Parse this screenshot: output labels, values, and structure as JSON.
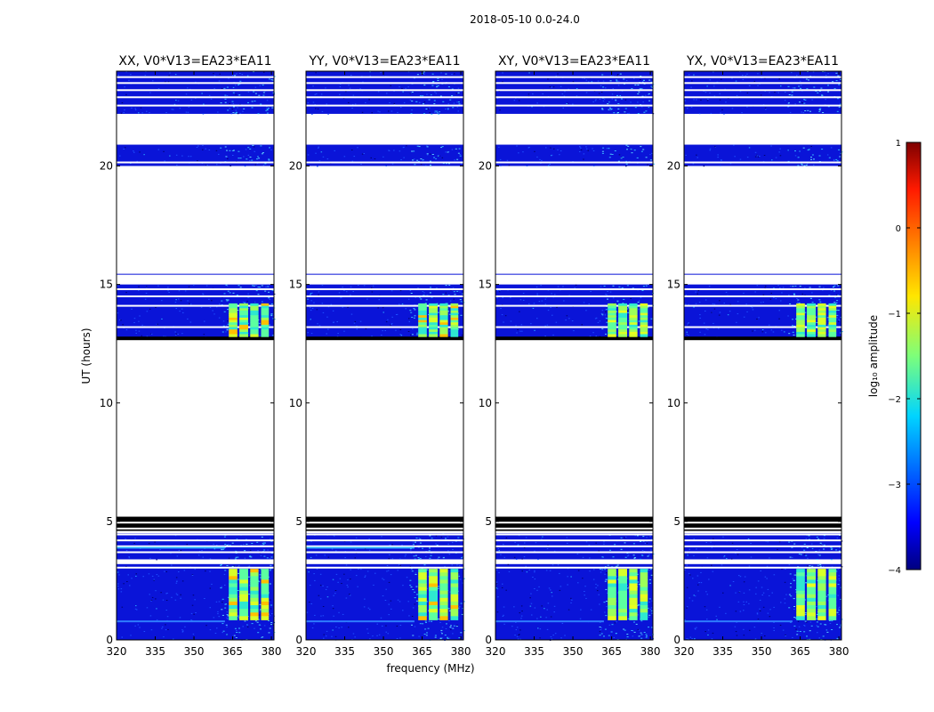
{
  "figure": {
    "suptitle": "2018-05-10 0.0-24.0",
    "xlabel": "frequency (MHz)",
    "ylabel": "UT (hours)"
  },
  "chart_data": {
    "type": "heatmap",
    "title": "2018-05-10 0.0-24.0",
    "xlabel": "frequency (MHz)",
    "ylabel": "UT (hours)",
    "xlim": [
      320,
      381
    ],
    "ylim": [
      0,
      24
    ],
    "xticks": [
      "320",
      "335",
      "350",
      "365",
      "380"
    ],
    "xtick_values": [
      320,
      335,
      350,
      365,
      380
    ],
    "yticks": [
      "0",
      "5",
      "10",
      "15",
      "20"
    ],
    "ytick_values": [
      0,
      5,
      10,
      15,
      20
    ],
    "panels": [
      {
        "title": "XX, V0*V13=EA23*EA11",
        "pol": "XX"
      },
      {
        "title": "YY, V0*V13=EA23*EA11",
        "pol": "YY"
      },
      {
        "title": "XY, V0*V13=EA23*EA11",
        "pol": "XY"
      },
      {
        "title": "YX, V0*V13=EA23*EA11",
        "pol": "YX"
      }
    ],
    "data_blocks_hours": [
      [
        0,
        3.2
      ],
      [
        3.4,
        4.5
      ],
      [
        12.7,
        15.0
      ],
      [
        20.0,
        20.9
      ],
      [
        22.2,
        24.0
      ]
    ],
    "flagged_blocks_hours": [
      [
        4.6,
        5.2
      ],
      [
        12.65,
        12.8
      ]
    ],
    "rfi_band_mhz": [
      360,
      381
    ],
    "colorbar": {
      "label": "log₁₀ amplitude",
      "range": [
        -4,
        1
      ],
      "ticks": [
        "1",
        "0",
        "−1",
        "−2",
        "−3",
        "−4"
      ],
      "tick_values": [
        1,
        0,
        -1,
        -2,
        -3,
        -4
      ],
      "colormap": "jet"
    }
  }
}
